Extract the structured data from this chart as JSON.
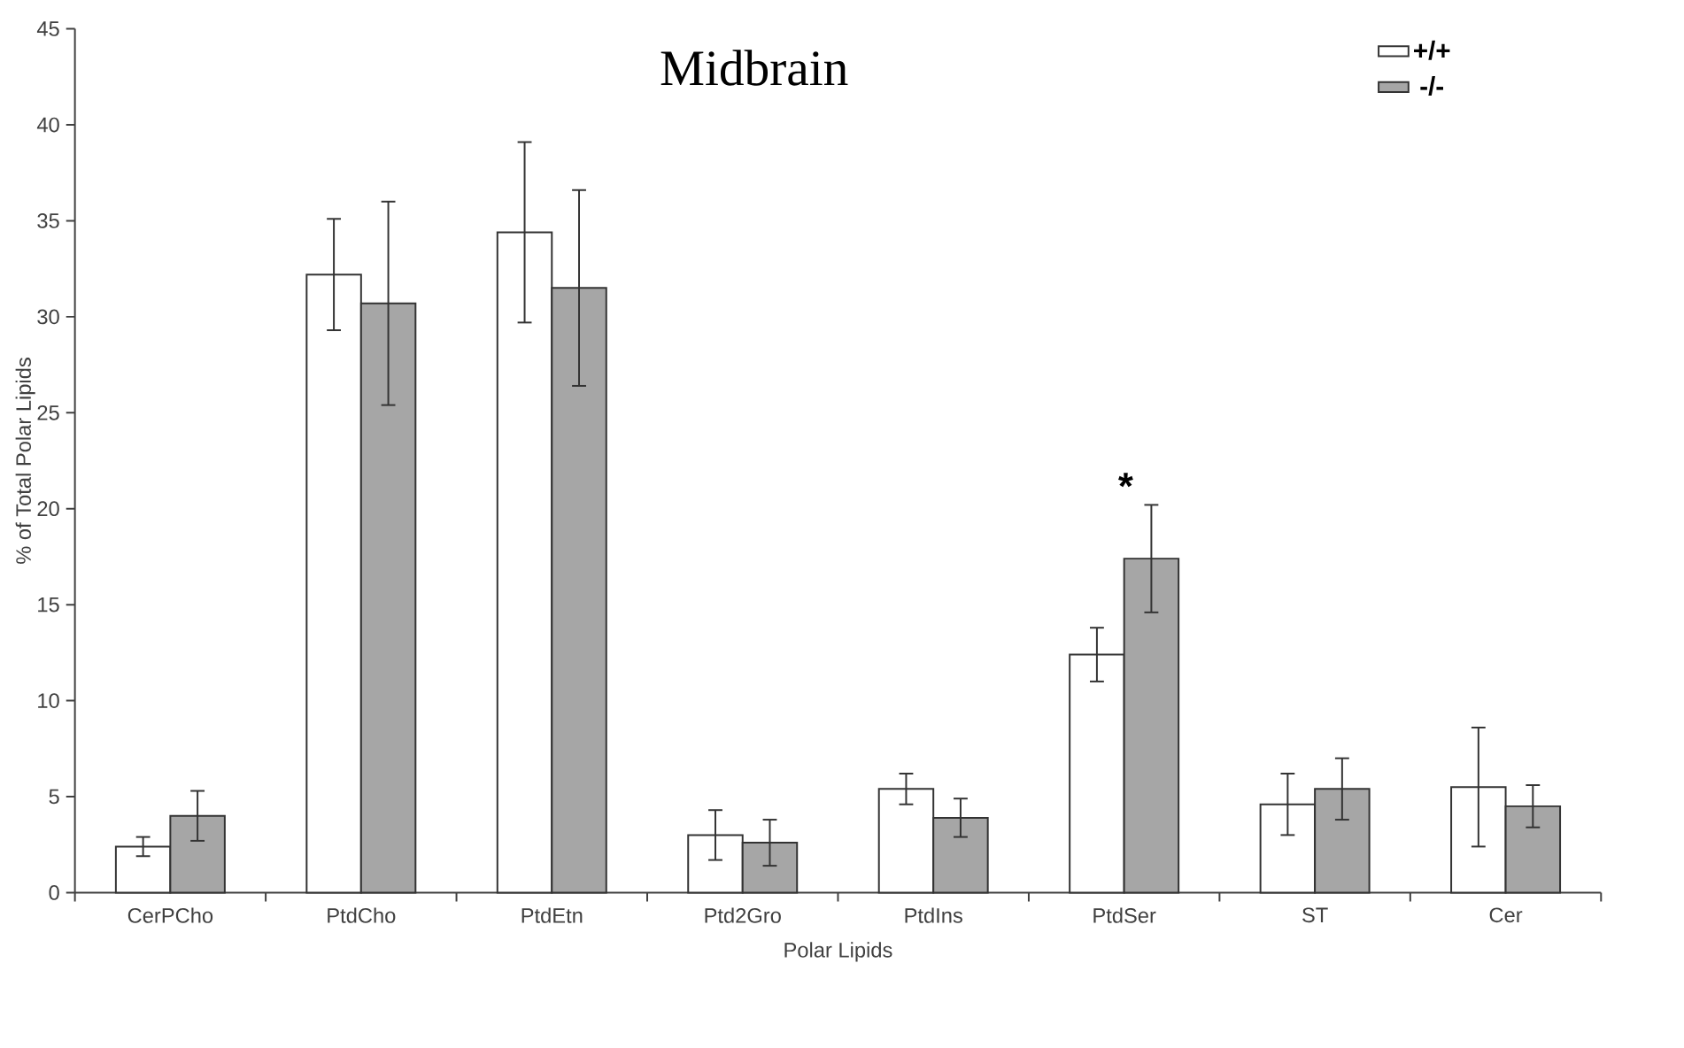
{
  "chart_data": {
    "type": "bar",
    "title": "Midbrain",
    "xlabel": "Polar Lipids",
    "ylabel": "% of Total Polar Lipids",
    "categories": [
      "CerPCho",
      "PtdCho",
      "PtdEtn",
      "Ptd2Gro",
      "PtdIns",
      "PtdSer",
      "ST",
      "Cer"
    ],
    "series": [
      {
        "name": "+/+",
        "color": "#ffffff",
        "values": [
          2.4,
          32.2,
          34.4,
          3.0,
          5.4,
          12.4,
          4.6,
          5.5
        ],
        "errors": [
          0.5,
          2.9,
          4.7,
          1.3,
          0.8,
          1.4,
          1.6,
          3.1
        ]
      },
      {
        "name": "-/-",
        "color": "#a6a6a6",
        "values": [
          4.0,
          30.7,
          31.5,
          2.6,
          3.9,
          17.4,
          5.4,
          4.5
        ],
        "errors": [
          1.3,
          5.3,
          5.1,
          1.2,
          1.0,
          2.8,
          1.6,
          1.1
        ]
      }
    ],
    "ylim": [
      0,
      45
    ],
    "yticks": [
      0,
      5,
      10,
      15,
      20,
      25,
      30,
      35,
      40,
      45
    ],
    "grid": false,
    "legend": "top right",
    "annotations": [
      "*"
    ]
  }
}
